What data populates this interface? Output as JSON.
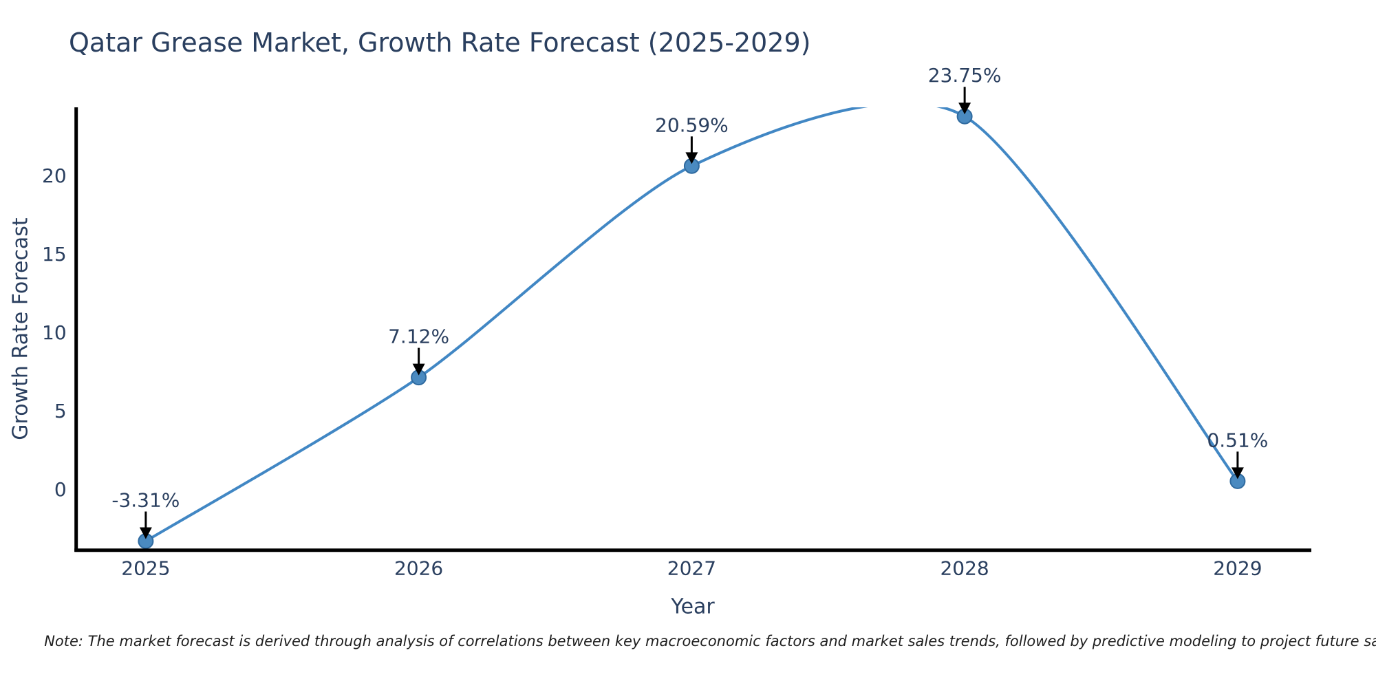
{
  "title": "Qatar Grease Market, Growth Rate Forecast (2025-2029)",
  "note": "Note: The market forecast is derived through analysis of correlations between key macroeconomic factors and market sales trends, followed by predictive modeling to project future sales",
  "chart_data": {
    "type": "line",
    "line_shape": "spline",
    "title": "Qatar Grease Market, Growth Rate Forecast (2025-2029)",
    "xlabel": "Year",
    "ylabel": "Growth Rate Forecast",
    "x": [
      2025,
      2026,
      2027,
      2028,
      2029
    ],
    "values": [
      -3.31,
      7.12,
      20.59,
      23.75,
      0.51
    ],
    "point_labels": [
      "-3.31%",
      "7.12%",
      "20.59%",
      "23.75%",
      "0.51%"
    ],
    "yticks": [
      0,
      5,
      10,
      15,
      20
    ],
    "xticks": [
      2025,
      2026,
      2027,
      2028,
      2029
    ],
    "xlim": [
      2024.745,
      2029.27
    ],
    "ylim": [
      -3.87,
      24.33
    ],
    "grid": false,
    "legend": "none",
    "annotations_note": "each point labeled with percent value and a black arrow pointing down to the marker; spline clipped at top of plot area between 2027 and 2028",
    "colors": {
      "line": "#4187c4",
      "marker_fill": "#4a8ac0",
      "marker_edge": "#2f6a9f",
      "axis_line": "#000000",
      "tick_text": "#2a3f5f",
      "annotation_text": "#2a3f5f",
      "arrow": "#000000",
      "background": "#ffffff"
    }
  }
}
